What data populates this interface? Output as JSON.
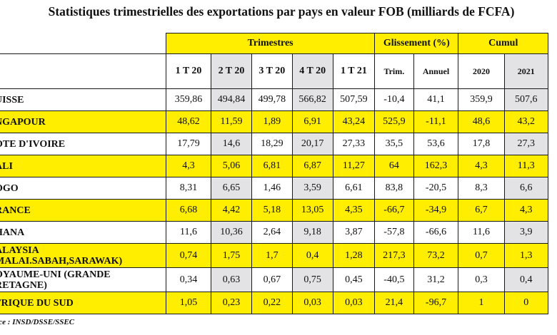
{
  "title": "Statistiques trimestrielles des exportations par pays en valeur FOB (milliards de FCFA)",
  "groups": {
    "trimestres": "Trimestres",
    "glissement": "Glissement (%)",
    "cumul": "Cumul"
  },
  "columns": [
    "1 T 20",
    "2 T 20",
    "3 T 20",
    "4 T 20",
    "1 T 21",
    "Trim.",
    "Annuel",
    "2020",
    "2021"
  ],
  "rows": [
    {
      "country": "UISSE",
      "values": [
        "359,86",
        "494,84",
        "499,78",
        "566,82",
        "507,59",
        "-10,4",
        "41,1",
        "359,9",
        "507,6"
      ]
    },
    {
      "country": "NGAPOUR",
      "values": [
        "48,62",
        "11,59",
        "1,89",
        "6,91",
        "43,24",
        "525,9",
        "-11,1",
        "48,6",
        "43,2"
      ]
    },
    {
      "country": "OTE D'IVOIRE",
      "values": [
        "17,79",
        "14,6",
        "18,29",
        "20,17",
        "27,33",
        "35,5",
        "53,6",
        "17,8",
        "27,3"
      ]
    },
    {
      "country": "ALI",
      "values": [
        "4,3",
        "5,06",
        "6,81",
        "6,87",
        "11,27",
        "64",
        "162,3",
        "4,3",
        "11,3"
      ]
    },
    {
      "country": "OGO",
      "values": [
        "8,31",
        "6,65",
        "1,46",
        "3,59",
        "6,61",
        "83,8",
        "-20,5",
        "8,3",
        "6,6"
      ]
    },
    {
      "country": "RANCE",
      "values": [
        "6,68",
        "4,42",
        "5,18",
        "13,05",
        "4,35",
        "-66,7",
        "-34,9",
        "6,7",
        "4,3"
      ]
    },
    {
      "country": "HANA",
      "values": [
        "11,6",
        "10,36",
        "2,64",
        "9,18",
        "3,87",
        "-57,8",
        "-66,6",
        "11,6",
        "3,9"
      ]
    },
    {
      "country_line1": "ALAYSIA",
      "country_line2": "MALAI.SABAH,SARAWAK)",
      "values": [
        "0,74",
        "1,75",
        "1,7",
        "0,4",
        "1,28",
        "217,3",
        "73,2",
        "0,7",
        "1,3"
      ]
    },
    {
      "country_line1": "OYAUME-UNI (GRANDE",
      "country_line2": "RETAGNE)",
      "values": [
        "0,34",
        "0,63",
        "0,67",
        "0,75",
        "0,45",
        "-40,5",
        "31,2",
        "0,3",
        "0,4"
      ]
    },
    {
      "country": "FRIQUE DU SUD",
      "values": [
        "1,05",
        "0,23",
        "0,22",
        "0,03",
        "0,03",
        "21,4",
        "-96,7",
        "1",
        "0"
      ]
    }
  ],
  "source": "rce : INSD/DSSE/SSEC"
}
